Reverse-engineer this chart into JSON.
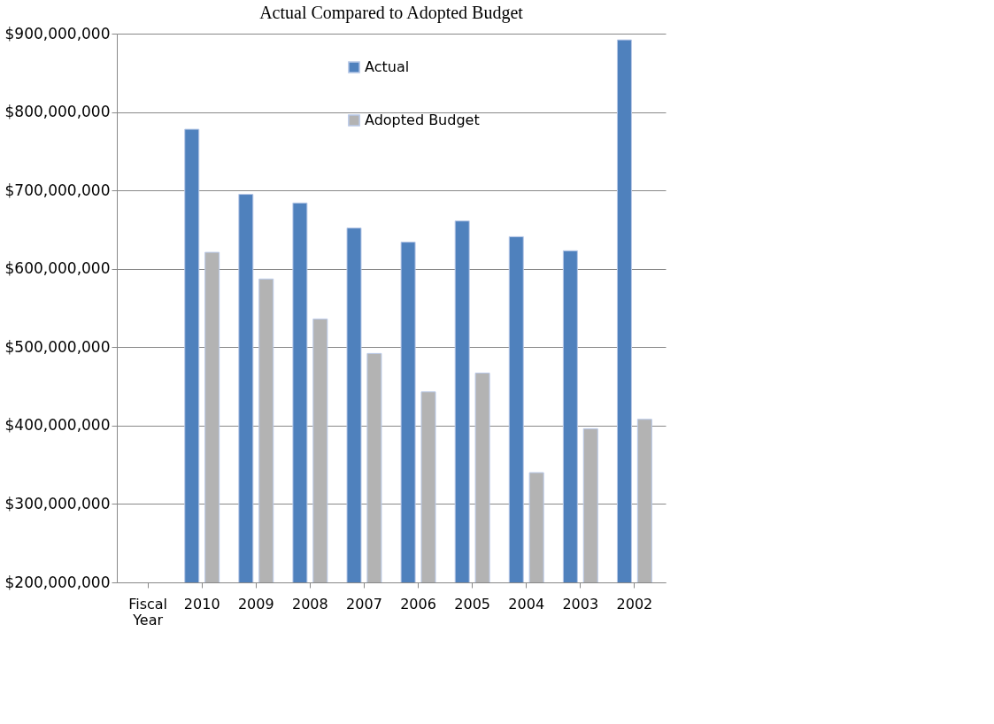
{
  "chart_data": {
    "type": "bar",
    "title": "Actual Compared to Adopted Budget",
    "categories": [
      "Fiscal Year",
      "2010",
      "2009",
      "2008",
      "2007",
      "2006",
      "2005",
      "2004",
      "2003",
      "2002"
    ],
    "series": [
      {
        "name": "Actual",
        "color": "#4f81bd",
        "values": [
          null,
          778000000,
          695000000,
          684000000,
          652000000,
          634000000,
          661000000,
          641000000,
          623000000,
          892000000
        ]
      },
      {
        "name": "Adopted Budget",
        "color": "#b3b3b3",
        "values": [
          null,
          621000000,
          587000000,
          536000000,
          492000000,
          443000000,
          467000000,
          340000000,
          396000000,
          408000000
        ]
      }
    ],
    "ylim": [
      200000000,
      900000000
    ],
    "yticks": [
      {
        "value": 200000000,
        "label": "$200,000,000"
      },
      {
        "value": 300000000,
        "label": "$300,000,000"
      },
      {
        "value": 400000000,
        "label": "$400,000,000"
      },
      {
        "value": 500000000,
        "label": "$500,000,000"
      },
      {
        "value": 600000000,
        "label": "$600,000,000"
      },
      {
        "value": 700000000,
        "label": "$700,000,000"
      },
      {
        "value": 800000000,
        "label": "$800,000,000"
      },
      {
        "value": 900000000,
        "label": "$900,000,000"
      }
    ],
    "grid": "y",
    "legend": "top"
  }
}
